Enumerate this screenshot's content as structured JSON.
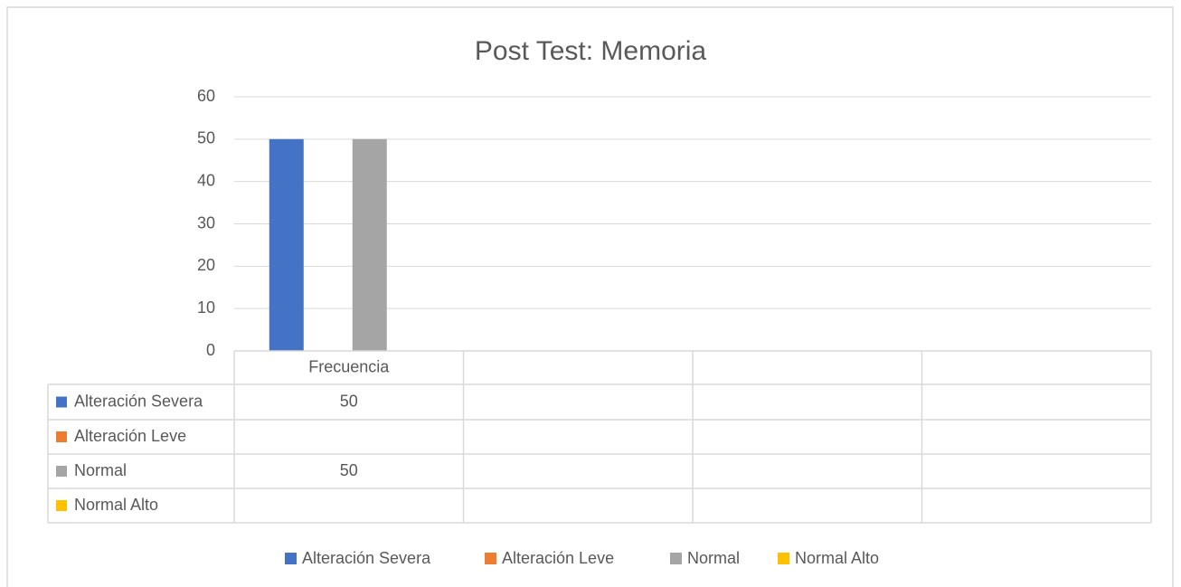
{
  "chart_data": {
    "type": "bar",
    "title": "Post Test: Memoria",
    "categories": [
      "Frecuencia",
      null,
      null,
      null
    ],
    "series": [
      {
        "name": "Alteración Severa",
        "color": "#4472c4",
        "values": [
          50,
          null,
          null,
          null
        ]
      },
      {
        "name": "Alteración Leve",
        "color": "#ed7d31",
        "values": [
          null,
          null,
          null,
          null
        ]
      },
      {
        "name": "Normal",
        "color": "#a5a5a5",
        "values": [
          50,
          null,
          null,
          null
        ]
      },
      {
        "name": "Normal Alto",
        "color": "#ffc000",
        "values": [
          null,
          null,
          null,
          null
        ]
      }
    ],
    "ylim": [
      0,
      60
    ],
    "yticks": [
      0,
      10,
      20,
      30,
      40,
      50,
      60
    ],
    "grid": true,
    "data_table": true,
    "legend": "bottom"
  }
}
